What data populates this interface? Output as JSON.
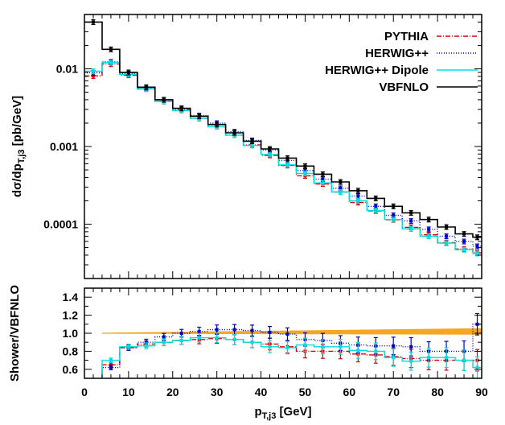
{
  "chart_data": [
    {
      "type": "line",
      "panel": "main",
      "ylabel": "dσ/dp",
      "ylabel_sub": "T,j3",
      "ylabel_suffix": " [pb/GeV]",
      "yscale": "log",
      "xlim": [
        0,
        90
      ],
      "ylim": [
        2e-05,
        0.05
      ],
      "y_ticks": [
        0.0001,
        0.001,
        0.01
      ],
      "y_tick_labels": [
        "0.0001",
        "0.001",
        "0.01"
      ],
      "legend_position": "top-right",
      "bin_edges": [
        0,
        4,
        8,
        12,
        16,
        20,
        24,
        28,
        32,
        36,
        40,
        44,
        48,
        52,
        56,
        60,
        64,
        68,
        72,
        76,
        80,
        84,
        88,
        90
      ],
      "series": [
        {
          "name": "PYTHIA",
          "color": "#dd0000",
          "style": "dash-dot",
          "values": [
            0.0081,
            0.0115,
            0.0083,
            0.0055,
            0.0038,
            0.003,
            0.0023,
            0.0018,
            0.0014,
            0.00105,
            0.00077,
            0.00057,
            0.00042,
            0.00033,
            0.00026,
            0.00019,
            0.000148,
            0.000114,
            9.1e-05,
            7.3e-05,
            5.8e-05,
            4.8e-05,
            4.3e-05
          ]
        },
        {
          "name": "HERWIG++",
          "color": "#0000cc",
          "style": "dotted",
          "values": [
            0.0089,
            0.0123,
            0.0087,
            0.0056,
            0.004,
            0.0031,
            0.0025,
            0.002,
            0.00155,
            0.0012,
            0.0009,
            0.00066,
            0.00049,
            0.00038,
            0.00029,
            0.00023,
            0.00017,
            0.00013,
            0.00011,
            8.6e-05,
            7e-05,
            6e-05,
            5.2e-05
          ]
        },
        {
          "name": "HERWIG++ Dipole",
          "color": "#00dddd",
          "style": "solid",
          "values": [
            0.0093,
            0.012,
            0.0085,
            0.0055,
            0.0038,
            0.0029,
            0.0023,
            0.0018,
            0.0014,
            0.00103,
            0.00079,
            0.00058,
            0.00045,
            0.00034,
            0.00026,
            0.0002,
            0.00015,
            0.000115,
            8.7e-05,
            7e-05,
            5.7e-05,
            4.7e-05,
            4.2e-05
          ]
        },
        {
          "name": "VBFNLO",
          "color": "#000000",
          "style": "solid",
          "values": [
            0.04,
            0.0178,
            0.009,
            0.0058,
            0.004,
            0.0031,
            0.00245,
            0.00192,
            0.0015,
            0.00117,
            0.00093,
            0.00071,
            0.00056,
            0.00044,
            0.00035,
            0.00027,
            0.000215,
            0.00017,
            0.00014,
            0.000115,
            9.2e-05,
            7.5e-05,
            6.8e-05
          ]
        }
      ]
    },
    {
      "type": "line",
      "panel": "ratio",
      "xlabel": "p",
      "xlabel_sub": "T,j3",
      "xlabel_suffix": " [GeV]",
      "ylabel": "Shower/VBFNLO",
      "xlim": [
        0,
        90
      ],
      "ylim": [
        0.5,
        1.5
      ],
      "x_ticks": [
        0,
        10,
        20,
        30,
        40,
        50,
        60,
        70,
        80,
        90
      ],
      "y_ticks": [
        0.6,
        0.8,
        1.0,
        1.2,
        1.4
      ],
      "y_tick_labels": [
        "0.6",
        "0.8",
        "1.0",
        "1.2",
        "1.4"
      ],
      "bin_edges": [
        0,
        4,
        8,
        12,
        16,
        20,
        24,
        28,
        32,
        36,
        40,
        44,
        48,
        52,
        56,
        60,
        64,
        68,
        72,
        76,
        80,
        84,
        88,
        90
      ],
      "band": {
        "color": "#f5a623",
        "x": [
          4,
          90
        ],
        "lower": [
          1.0,
          0.99
        ],
        "upper": [
          1.0,
          1.05
        ]
      },
      "series": [
        {
          "name": "PYTHIA",
          "color": "#dd0000",
          "style": "dash-dot",
          "values": [
            0.45,
            0.65,
            0.84,
            0.88,
            0.9,
            0.92,
            0.93,
            0.94,
            0.93,
            0.9,
            0.88,
            0.85,
            0.8,
            0.8,
            0.8,
            0.77,
            0.76,
            0.74,
            0.72,
            0.7,
            0.7,
            0.7,
            0.7
          ]
        },
        {
          "name": "HERWIG++",
          "color": "#0000cc",
          "style": "dotted",
          "values": [
            0.45,
            0.62,
            0.84,
            0.9,
            0.96,
            1.0,
            1.02,
            1.04,
            1.04,
            1.03,
            1.01,
            0.99,
            0.93,
            0.92,
            0.89,
            0.87,
            0.86,
            0.86,
            0.85,
            0.8,
            0.8,
            0.8,
            1.1
          ]
        },
        {
          "name": "HERWIG++ Dipole",
          "color": "#00dddd",
          "style": "solid",
          "values": [
            0.45,
            0.7,
            0.85,
            0.86,
            0.9,
            0.92,
            0.95,
            0.95,
            0.93,
            0.9,
            0.85,
            0.84,
            0.87,
            0.85,
            0.85,
            0.81,
            0.8,
            0.73,
            0.69,
            0.73,
            0.73,
            0.7,
            0.62
          ]
        }
      ]
    }
  ]
}
